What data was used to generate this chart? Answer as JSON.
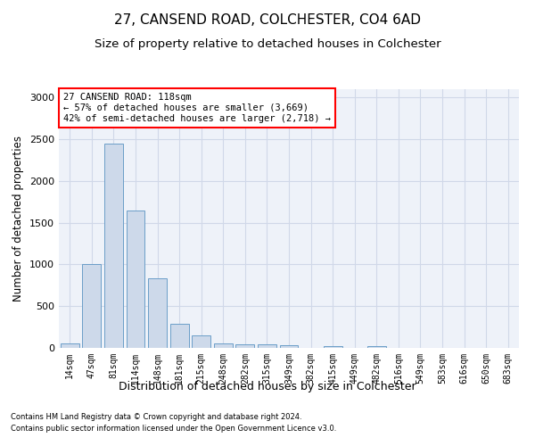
{
  "title": "27, CANSEND ROAD, COLCHESTER, CO4 6AD",
  "subtitle": "Size of property relative to detached houses in Colchester",
  "xlabel": "Distribution of detached houses by size in Colchester",
  "ylabel": "Number of detached properties",
  "bar_color": "#cdd9ea",
  "bar_edge_color": "#6b9ec8",
  "background_color": "#eef2f9",
  "categories": [
    "14sqm",
    "47sqm",
    "81sqm",
    "114sqm",
    "148sqm",
    "181sqm",
    "215sqm",
    "248sqm",
    "282sqm",
    "315sqm",
    "349sqm",
    "382sqm",
    "415sqm",
    "449sqm",
    "482sqm",
    "516sqm",
    "549sqm",
    "583sqm",
    "616sqm",
    "650sqm",
    "683sqm"
  ],
  "values": [
    50,
    1000,
    2450,
    1650,
    830,
    290,
    145,
    50,
    45,
    45,
    35,
    0,
    20,
    0,
    20,
    0,
    0,
    0,
    0,
    0,
    0
  ],
  "ylim": [
    0,
    3100
  ],
  "yticks": [
    0,
    500,
    1000,
    1500,
    2000,
    2500,
    3000
  ],
  "annotation_box_text": "27 CANSEND ROAD: 118sqm\n← 57% of detached houses are smaller (3,669)\n42% of semi-detached houses are larger (2,718) →",
  "footnote1": "Contains HM Land Registry data © Crown copyright and database right 2024.",
  "footnote2": "Contains public sector information licensed under the Open Government Licence v3.0.",
  "grid_color": "#d0d8e8",
  "title_fontsize": 11,
  "subtitle_fontsize": 9.5,
  "tick_fontsize": 7,
  "ylabel_fontsize": 8.5,
  "xlabel_fontsize": 9,
  "footnote_fontsize": 6,
  "ann_fontsize": 7.5
}
